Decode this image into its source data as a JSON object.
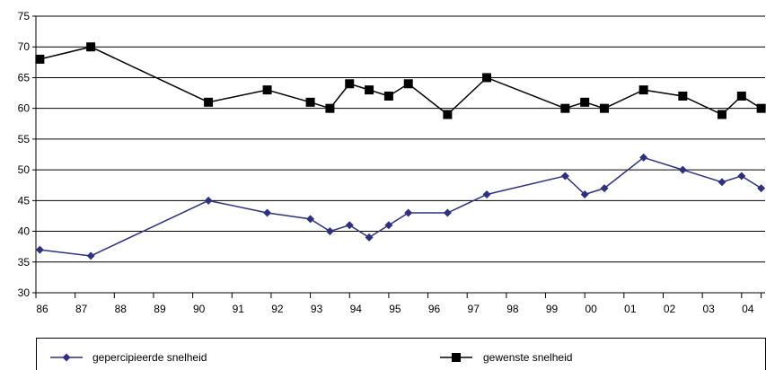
{
  "chart_data": {
    "type": "line",
    "title": "",
    "xlabel": "",
    "ylabel": "",
    "ylim": [
      30,
      75
    ],
    "yticks": [
      30,
      35,
      40,
      45,
      50,
      55,
      60,
      65,
      70,
      75
    ],
    "xlim": [
      1986,
      2004.6
    ],
    "xtick_labels": [
      "86",
      "87",
      "88",
      "89",
      "90",
      "91",
      "92",
      "93",
      "94",
      "95",
      "96",
      "97",
      "98",
      "99",
      "00",
      "01",
      "02",
      "03",
      "04"
    ],
    "grid": "horizontal",
    "legend_position": "bottom",
    "series": [
      {
        "name": "gepercipieerde snelheid",
        "color": "#2e3182",
        "marker": "diamond",
        "x": [
          1986.1,
          1987.4,
          1990.4,
          1991.9,
          1993.0,
          1993.5,
          1994.0,
          1994.5,
          1995.0,
          1995.5,
          1996.5,
          1997.5,
          1999.5,
          2000.0,
          2000.5,
          2001.5,
          2002.5,
          2003.5,
          2004.0,
          2004.5
        ],
        "y": [
          37,
          36,
          45,
          43,
          42,
          40,
          41,
          39,
          41,
          43,
          43,
          46,
          49,
          46,
          47,
          52,
          50,
          48,
          49,
          47
        ]
      },
      {
        "name": "gewenste snelheid",
        "color": "#000000",
        "marker": "square",
        "x": [
          1986.1,
          1987.4,
          1990.4,
          1991.9,
          1993.0,
          1993.5,
          1994.0,
          1994.5,
          1995.0,
          1995.5,
          1996.5,
          1997.5,
          1999.5,
          2000.0,
          2000.5,
          2001.5,
          2002.5,
          2003.5,
          2004.0,
          2004.5
        ],
        "y": [
          68,
          70,
          61,
          63,
          61,
          60,
          64,
          63,
          62,
          64,
          59,
          65,
          60,
          61,
          60,
          63,
          62,
          59,
          62,
          60
        ]
      }
    ]
  }
}
